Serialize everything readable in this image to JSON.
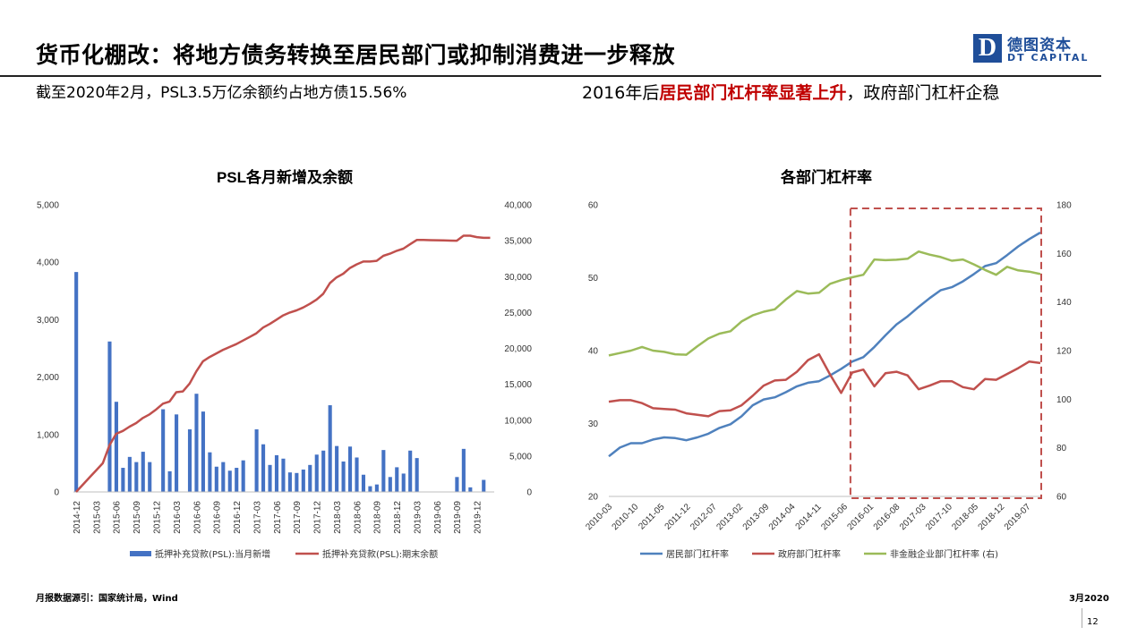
{
  "header": {
    "title": "货币化棚改：将地方债务转换至居民部门或抑制消费进一步释放",
    "logo_mark": "D",
    "logo_cn": "德图资本",
    "logo_en": "DT CAPITAL"
  },
  "subtitle_left": "截至2020年2月，PSL3.5万亿余额约占地方债15.56%",
  "subtitle_right": {
    "pre": "2016年后",
    "highlight": "居民部门杠杆率显著上升",
    "post": "，政府部门杠杆企稳"
  },
  "colors": {
    "bar": "#4472c4",
    "red": "#c0504d",
    "blue": "#4f81bd",
    "green": "#9bbb59",
    "highlight": "#c00000",
    "logo": "#1f4e99"
  },
  "chart_data": [
    {
      "type": "bar",
      "title": "PSL各月新增及余额",
      "left_axis": {
        "ticks": [
          "5,000",
          "4,000",
          "3,000",
          "2,000",
          "1,000",
          "0"
        ],
        "ylim": [
          0,
          5000
        ]
      },
      "right_axis": {
        "ticks": [
          "40,000",
          "35,000",
          "30,000",
          "25,000",
          "20,000",
          "15,000",
          "10,000",
          "5,000",
          "0"
        ],
        "ylim": [
          0,
          40000
        ]
      },
      "x_tick_labels": [
        "2014-12",
        "2015-03",
        "2015-06",
        "2015-09",
        "2015-12",
        "2016-03",
        "2016-06",
        "2016-09",
        "2016-12",
        "2017-03",
        "2017-06",
        "2017-09",
        "2017-12",
        "2018-03",
        "2018-06",
        "2018-09",
        "2018-12",
        "2019-03",
        "2019-06",
        "2019-09",
        "2019-12"
      ],
      "categories": [
        "2014-12",
        "2015-01",
        "2015-02",
        "2015-03",
        "2015-04",
        "2015-05",
        "2015-06",
        "2015-07",
        "2015-08",
        "2015-09",
        "2015-10",
        "2015-11",
        "2015-12",
        "2016-01",
        "2016-02",
        "2016-03",
        "2016-04",
        "2016-05",
        "2016-06",
        "2016-07",
        "2016-08",
        "2016-09",
        "2016-10",
        "2016-11",
        "2016-12",
        "2017-01",
        "2017-02",
        "2017-03",
        "2017-04",
        "2017-05",
        "2017-06",
        "2017-07",
        "2017-08",
        "2017-09",
        "2017-10",
        "2017-11",
        "2017-12",
        "2018-01",
        "2018-02",
        "2018-03",
        "2018-04",
        "2018-05",
        "2018-06",
        "2018-07",
        "2018-08",
        "2018-09",
        "2018-10",
        "2018-11",
        "2018-12",
        "2019-01",
        "2019-02",
        "2019-03",
        "2019-04",
        "2019-05",
        "2019-06",
        "2019-07",
        "2019-08",
        "2019-09",
        "2019-10",
        "2019-11",
        "2019-12",
        "2020-01",
        "2020-02"
      ],
      "series": [
        {
          "name": "抵押补充贷款(PSL):当月新增",
          "axis": "left",
          "values": [
            3830,
            0,
            0,
            0,
            0,
            2620,
            1570,
            420,
            610,
            520,
            700,
            520,
            0,
            1440,
            360,
            1350,
            0,
            1090,
            1710,
            1400,
            690,
            440,
            520,
            370,
            420,
            550,
            0,
            1090,
            830,
            470,
            640,
            580,
            340,
            330,
            390,
            470,
            650,
            720,
            1510,
            800,
            530,
            790,
            600,
            300,
            100,
            130,
            730,
            260,
            430,
            320,
            720,
            590,
            0,
            0,
            0,
            0,
            0,
            260,
            750,
            80,
            0,
            210,
            0
          ]
        },
        {
          "name": "抵押补充贷款(PSL):期末余额",
          "axis": "right",
          "values": [
            0,
            1000,
            2000,
            3000,
            4000,
            6500,
            8100,
            8500,
            9100,
            9600,
            10300,
            10800,
            11500,
            12300,
            12600,
            13900,
            14000,
            15100,
            16800,
            18200,
            18800,
            19300,
            19800,
            20200,
            20600,
            21100,
            21600,
            22100,
            22900,
            23400,
            24000,
            24600,
            25000,
            25300,
            25700,
            26200,
            26800,
            27600,
            29100,
            29900,
            30400,
            31200,
            31700,
            32100,
            32100,
            32200,
            32900,
            33200,
            33600,
            33900,
            34500,
            35100,
            35100,
            35080,
            35060,
            35040,
            35020,
            35000,
            35700,
            35700,
            35500,
            35400,
            35400
          ]
        }
      ]
    },
    {
      "type": "line",
      "title": "各部门杠杆率",
      "left_axis": {
        "ticks": [
          "60",
          "50",
          "40",
          "30",
          "20"
        ],
        "ylim": [
          20,
          60
        ]
      },
      "right_axis": {
        "ticks": [
          "180",
          "160",
          "140",
          "120",
          "100",
          "80",
          "60"
        ],
        "ylim": [
          60,
          180
        ]
      },
      "x_tick_labels": [
        "2010-03",
        "2010-10",
        "2011-05",
        "2011-12",
        "2012-07",
        "2013-02",
        "2013-09",
        "2014-04",
        "2014-11",
        "2015-06",
        "2016-01",
        "2016-08",
        "2017-03",
        "2017-10",
        "2018-05",
        "2018-12",
        "2019-07"
      ],
      "x": [
        "2010-03",
        "2010-06",
        "2010-09",
        "2010-12",
        "2011-03",
        "2011-06",
        "2011-09",
        "2011-12",
        "2012-03",
        "2012-06",
        "2012-09",
        "2012-12",
        "2013-03",
        "2013-06",
        "2013-09",
        "2013-12",
        "2014-03",
        "2014-06",
        "2014-09",
        "2014-12",
        "2015-03",
        "2015-06",
        "2015-09",
        "2015-12",
        "2016-03",
        "2016-06",
        "2016-09",
        "2016-12",
        "2017-03",
        "2017-06",
        "2017-09",
        "2017-12",
        "2018-03",
        "2018-06",
        "2018-09",
        "2018-12",
        "2019-03",
        "2019-06",
        "2019-09",
        "2019-12"
      ],
      "series": [
        {
          "name": "居民部门杠杆率",
          "axis": "left",
          "values": [
            25.5,
            26.7,
            27.3,
            27.3,
            27.8,
            28.1,
            28.0,
            27.7,
            28.1,
            28.6,
            29.4,
            29.9,
            31.0,
            32.5,
            33.3,
            33.6,
            34.3,
            35.1,
            35.6,
            35.8,
            36.6,
            37.5,
            38.5,
            39.1,
            40.5,
            42.1,
            43.6,
            44.7,
            46.0,
            47.2,
            48.3,
            48.7,
            49.5,
            50.5,
            51.6,
            52.0,
            53.1,
            54.3,
            55.3,
            56.2
          ]
        },
        {
          "name": "政府部门杠杆率",
          "axis": "left",
          "values": [
            33.0,
            33.2,
            33.2,
            32.8,
            32.1,
            32.0,
            31.9,
            31.4,
            31.2,
            31.0,
            31.7,
            31.8,
            32.5,
            33.8,
            35.2,
            35.9,
            36.0,
            37.1,
            38.7,
            39.5,
            36.7,
            34.2,
            37.0,
            37.4,
            35.1,
            36.9,
            37.1,
            36.6,
            34.7,
            35.2,
            35.8,
            35.8,
            35.0,
            34.7,
            36.1,
            36.0,
            36.8,
            37.6,
            38.5,
            38.3
          ]
        },
        {
          "name": "非金融企业部门杠杆率 (右)",
          "axis": "right",
          "values": [
            118.0,
            119.0,
            120.0,
            121.5,
            120.0,
            119.5,
            118.5,
            118.3,
            121.8,
            125.0,
            127.0,
            128.0,
            132.0,
            134.5,
            136.0,
            137.0,
            141.0,
            144.5,
            143.5,
            143.8,
            147.5,
            149.0,
            150.2,
            151.2,
            157.5,
            157.2,
            157.4,
            157.8,
            160.8,
            159.5,
            158.5,
            157.0,
            157.5,
            155.5,
            153.2,
            151.2,
            154.5,
            153.0,
            152.5,
            151.5
          ]
        }
      ],
      "highlight_box": {
        "x_from": "2015-09",
        "x_to": "2019-12",
        "style": "dashed"
      }
    }
  ],
  "footer": {
    "source": "月报数据源引：国家统计局，Wind",
    "date": "3月2020",
    "page": "12"
  }
}
